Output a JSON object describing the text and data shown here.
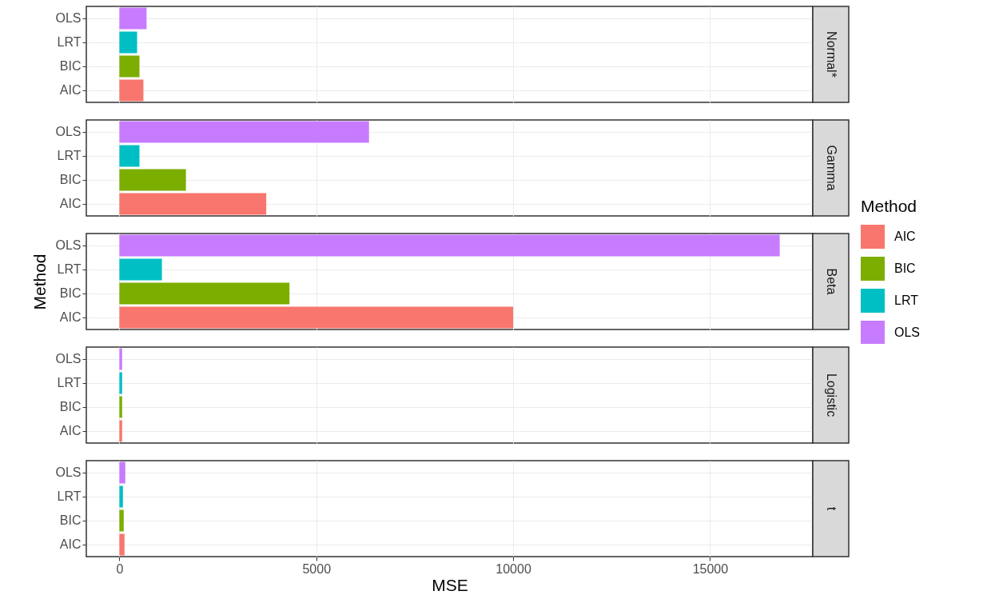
{
  "chart_data": [
    {
      "type": "bar",
      "orientation": "horizontal",
      "annotations": [
        "Normal*"
      ],
      "categories": [
        "OLS",
        "LRT",
        "BIC",
        "AIC"
      ],
      "series": [
        {
          "color": "#f8766d",
          "values": [
            null,
            null,
            null,
            610
          ]
        },
        {
          "color": "#7cae00",
          "values": [
            null,
            null,
            510,
            null
          ]
        },
        {
          "color": "#00bfc4",
          "values": [
            null,
            450,
            null,
            null
          ]
        },
        {
          "color": "#c77cff",
          "values": [
            690,
            null,
            null,
            null
          ]
        }
      ],
      "xlim": [
        -840,
        17610
      ],
      "xticks": [
        0,
        5000,
        10000,
        15000
      ],
      "grid": true,
      "tick_labels": "y"
    },
    {
      "type": "bar",
      "orientation": "horizontal",
      "annotations": [
        "Gamma"
      ],
      "categories": [
        "OLS",
        "LRT",
        "BIC",
        "AIC"
      ],
      "series": [
        {
          "color": "#f8766d",
          "values": [
            null,
            null,
            null,
            3730
          ]
        },
        {
          "color": "#7cae00",
          "values": [
            null,
            null,
            1690,
            null
          ]
        },
        {
          "color": "#00bfc4",
          "values": [
            null,
            510,
            null,
            null
          ]
        },
        {
          "color": "#c77cff",
          "values": [
            6340,
            null,
            null,
            null
          ]
        }
      ],
      "xlim": [
        -840,
        17610
      ],
      "xticks": [
        0,
        5000,
        10000,
        15000
      ],
      "grid": true,
      "tick_labels": "y"
    },
    {
      "type": "bar",
      "orientation": "horizontal",
      "annotations": [
        "Beta"
      ],
      "ylabel": "Method",
      "legend_title": "Method",
      "legend": "right",
      "categories": [
        "OLS",
        "LRT",
        "BIC",
        "AIC"
      ],
      "series": [
        {
          "name": "AIC",
          "color": "#f8766d",
          "values": [
            null,
            null,
            null,
            10000
          ]
        },
        {
          "name": "BIC",
          "color": "#7cae00",
          "values": [
            null,
            null,
            4320,
            null
          ]
        },
        {
          "name": "LRT",
          "color": "#00bfc4",
          "values": [
            null,
            1080,
            null,
            null
          ]
        },
        {
          "name": "OLS",
          "color": "#c77cff",
          "values": [
            16770,
            null,
            null,
            null
          ]
        }
      ],
      "xlim": [
        -840,
        17610
      ],
      "xticks": [
        0,
        5000,
        10000,
        15000
      ],
      "grid": true,
      "tick_labels": "y"
    },
    {
      "type": "bar",
      "orientation": "horizontal",
      "annotations": [
        "Logistic"
      ],
      "categories": [
        "OLS",
        "LRT",
        "BIC",
        "AIC"
      ],
      "series": [
        {
          "color": "#f8766d",
          "values": [
            null,
            null,
            null,
            70
          ]
        },
        {
          "color": "#7cae00",
          "values": [
            null,
            null,
            70,
            null
          ]
        },
        {
          "color": "#00bfc4",
          "values": [
            null,
            70,
            null,
            null
          ]
        },
        {
          "color": "#c77cff",
          "values": [
            70,
            null,
            null,
            null
          ]
        }
      ],
      "xlim": [
        -840,
        17610
      ],
      "xticks": [
        0,
        5000,
        10000,
        15000
      ],
      "grid": true,
      "tick_labels": "y"
    },
    {
      "type": "bar",
      "orientation": "horizontal",
      "annotations": [
        "t"
      ],
      "xlabel": "MSE",
      "categories": [
        "OLS",
        "LRT",
        "BIC",
        "AIC"
      ],
      "series": [
        {
          "color": "#f8766d",
          "values": [
            null,
            null,
            null,
            130
          ]
        },
        {
          "color": "#7cae00",
          "values": [
            null,
            null,
            110,
            null
          ]
        },
        {
          "color": "#00bfc4",
          "values": [
            null,
            90,
            null,
            null
          ]
        },
        {
          "color": "#c77cff",
          "values": [
            150,
            null,
            null,
            null
          ]
        }
      ],
      "xlim": [
        -840,
        17610
      ],
      "xticks": [
        0,
        5000,
        10000,
        15000
      ],
      "grid": true
    }
  ]
}
